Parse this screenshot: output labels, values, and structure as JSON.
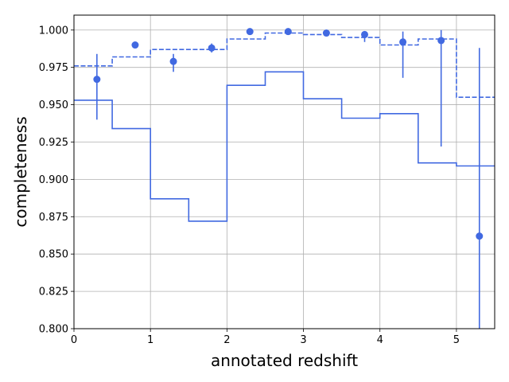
{
  "chart_data": {
    "type": "line",
    "title": "",
    "xlabel": "annotated redshift",
    "ylabel": "completeness",
    "xlim": [
      0,
      5.5
    ],
    "ylim": [
      0.8,
      1.01
    ],
    "grid": true,
    "legend": "none",
    "x_ticks": [
      0,
      1,
      2,
      3,
      4,
      5
    ],
    "x_tick_labels": [
      "0",
      "1",
      "2",
      "3",
      "4",
      "5"
    ],
    "y_ticks": [
      0.8,
      0.825,
      0.85,
      0.875,
      0.9,
      0.925,
      0.95,
      0.975,
      1.0
    ],
    "y_tick_labels": [
      "0.800",
      "0.825",
      "0.850",
      "0.875",
      "0.900",
      "0.925",
      "0.950",
      "0.975",
      "1.000"
    ],
    "color": "#4169e1",
    "bin_edges": [
      0,
      0.5,
      1.0,
      1.5,
      2.0,
      2.5,
      3.0,
      3.5,
      4.0,
      4.5,
      5.0,
      5.5
    ],
    "series": [
      {
        "style": "solid-step",
        "values": [
          0.953,
          0.934,
          0.887,
          0.872,
          0.963,
          0.972,
          0.954,
          0.941,
          0.944,
          0.911,
          0.909
        ]
      },
      {
        "style": "dashed-step",
        "values": [
          0.976,
          0.982,
          0.987,
          0.987,
          0.994,
          0.998,
          0.997,
          0.995,
          0.99,
          0.994,
          0.955
        ]
      },
      {
        "style": "points-with-errorbars",
        "x": [
          0.3,
          0.8,
          1.3,
          1.8,
          2.3,
          2.8,
          3.3,
          3.8,
          4.3,
          4.8,
          5.3
        ],
        "y": [
          0.967,
          0.99,
          0.979,
          0.988,
          0.999,
          0.999,
          0.998,
          0.997,
          0.992,
          0.993,
          0.862
        ],
        "err_low": [
          0.94,
          0.989,
          0.972,
          0.985,
          0.999,
          0.999,
          0.998,
          0.992,
          0.968,
          0.922,
          0.8
        ],
        "err_high": [
          0.984,
          0.991,
          0.984,
          0.991,
          0.999,
          0.999,
          0.998,
          0.998,
          0.999,
          1.0,
          0.988
        ]
      }
    ]
  }
}
